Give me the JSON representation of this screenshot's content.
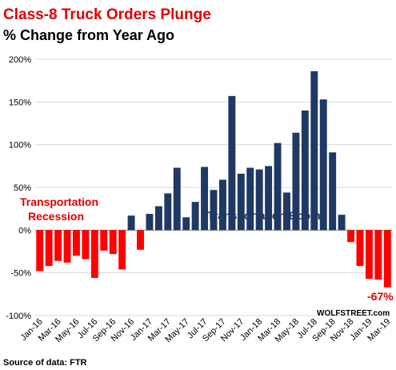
{
  "chart_data": {
    "type": "bar",
    "title": "Class-8 Truck Orders Plunge",
    "subtitle": "% Change from Year Ago",
    "source": "Source of data: FTR",
    "brand": "WOLFSTREET.com",
    "ylim": [
      -100,
      200
    ],
    "yticks": [
      -100,
      -50,
      0,
      50,
      100,
      150,
      200
    ],
    "ytick_labels": [
      "-100%",
      "-50%",
      "0%",
      "50%",
      "100%",
      "150%",
      "200%"
    ],
    "grid": true,
    "categories": [
      "Jan-16",
      "Feb-16",
      "Mar-16",
      "Apr-16",
      "May-16",
      "Jun-16",
      "Jul-16",
      "Aug-16",
      "Sep-16",
      "Oct-16",
      "Nov-16",
      "Dec-16",
      "Jan-17",
      "Feb-17",
      "Mar-17",
      "Apr-17",
      "May-17",
      "Jun-17",
      "Jul-17",
      "Aug-17",
      "Sep-17",
      "Oct-17",
      "Nov-17",
      "Dec-17",
      "Jan-18",
      "Feb-18",
      "Mar-18",
      "Apr-18",
      "May-18",
      "Jun-18",
      "Jul-18",
      "Aug-18",
      "Sep-18",
      "Oct-18",
      "Nov-18",
      "Dec-18",
      "Jan-19",
      "Feb-19",
      "Mar-19"
    ],
    "xtick_labels": [
      "Jan-16",
      "Mar-16",
      "May-16",
      "Jul-16",
      "Sep-16",
      "Nov-16",
      "Jan-17",
      "Mar-17",
      "May-17",
      "Jul-17",
      "Sep-17",
      "Nov-17",
      "Jan-18",
      "Mar-18",
      "May-18",
      "Jul-18",
      "Sep-18",
      "Nov-18",
      "Jan-19",
      "Mar-19"
    ],
    "values": [
      -48,
      -42,
      -36,
      -38,
      -30,
      -34,
      -56,
      -24,
      -28,
      -46,
      17,
      -23,
      19,
      28,
      43,
      73,
      15,
      33,
      74,
      47,
      59,
      157,
      66,
      73,
      71,
      75,
      102,
      44,
      114,
      140,
      186,
      153,
      91,
      18,
      -14,
      -42,
      -57,
      -58,
      -67
    ],
    "colors": {
      "positive": "#1f3864",
      "negative": "#ff0000"
    },
    "annotations": {
      "recession_line1": "Transportation",
      "recession_line2": "Recession",
      "boom": "Transportation Boom",
      "last_value": "-67%"
    }
  }
}
